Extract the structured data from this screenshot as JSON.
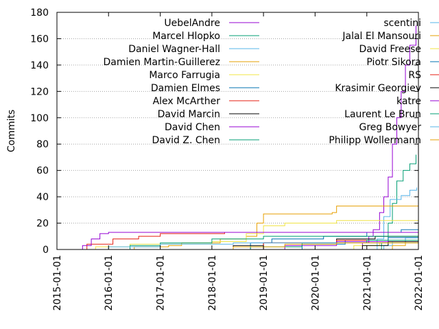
{
  "chart_data": {
    "type": "line",
    "title": "",
    "xlabel": "",
    "ylabel": "Commits",
    "x_axis_type": "date",
    "xlim": [
      "2015-01-01",
      "2022-01-01"
    ],
    "ylim": [
      0,
      180
    ],
    "x_ticks": [
      "2015-01-01",
      "2016-01-01",
      "2017-01-01",
      "2018-01-01",
      "2019-01-01",
      "2020-01-01",
      "2021-01-01",
      "2022-01-01"
    ],
    "y_ticks": [
      0,
      20,
      40,
      60,
      80,
      100,
      120,
      140,
      160,
      180
    ],
    "grid": "horizontal dotted",
    "legend_placement": "top, two columns",
    "line_style": "step",
    "series": [
      {
        "name": "UebelAndre",
        "color": "#9400d3",
        "points": [
          [
            "2020-11-01",
            0
          ],
          [
            "2020-12-01",
            5
          ],
          [
            "2021-01-15",
            10
          ],
          [
            "2021-02-15",
            15
          ],
          [
            "2021-04-01",
            28
          ],
          [
            "2021-05-01",
            40
          ],
          [
            "2021-06-01",
            55
          ],
          [
            "2021-07-01",
            80
          ],
          [
            "2021-08-01",
            100
          ],
          [
            "2021-09-01",
            120
          ],
          [
            "2021-10-01",
            140
          ],
          [
            "2021-11-01",
            155
          ],
          [
            "2021-12-15",
            170
          ]
        ]
      },
      {
        "name": "Marcel Hlopko",
        "color": "#009e73",
        "points": [
          [
            "2021-03-01",
            0
          ],
          [
            "2021-04-15",
            5
          ],
          [
            "2021-06-01",
            20
          ],
          [
            "2021-07-01",
            35
          ],
          [
            "2021-08-01",
            52
          ],
          [
            "2021-09-15",
            60
          ],
          [
            "2021-11-01",
            65
          ],
          [
            "2021-12-15",
            72
          ]
        ]
      },
      {
        "name": "Daniel Wagner-Hall",
        "color": "#56b4e9",
        "points": [
          [
            "2021-01-01",
            0
          ],
          [
            "2021-03-15",
            8
          ],
          [
            "2021-05-01",
            25
          ],
          [
            "2021-06-15",
            38
          ],
          [
            "2021-09-01",
            41
          ],
          [
            "2021-11-01",
            45
          ],
          [
            "2021-12-20",
            47
          ]
        ]
      },
      {
        "name": "Damien Martin-Guillerez",
        "color": "#e69f00",
        "points": [
          [
            "2016-05-01",
            0
          ],
          [
            "2016-07-01",
            2
          ],
          [
            "2017-03-01",
            3
          ],
          [
            "2017-06-01",
            5
          ],
          [
            "2018-03-01",
            8
          ],
          [
            "2018-09-01",
            10
          ],
          [
            "2018-11-15",
            20
          ],
          [
            "2019-01-01",
            27
          ],
          [
            "2020-05-01",
            28
          ],
          [
            "2020-06-01",
            33
          ],
          [
            "2022-01-01",
            33
          ]
        ]
      },
      {
        "name": "Marco Farrugia",
        "color": "#f0e442",
        "points": [
          [
            "2015-07-01",
            0
          ],
          [
            "2015-10-01",
            2
          ],
          [
            "2016-06-01",
            4
          ],
          [
            "2018-01-01",
            6
          ],
          [
            "2018-09-01",
            12
          ],
          [
            "2019-01-01",
            18
          ],
          [
            "2019-06-01",
            20
          ],
          [
            "2020-06-01",
            22
          ],
          [
            "2022-01-01",
            23
          ]
        ]
      },
      {
        "name": "Damien Elmes",
        "color": "#0072b2",
        "points": [
          [
            "2018-06-01",
            0
          ],
          [
            "2018-10-01",
            5
          ],
          [
            "2019-03-01",
            8
          ],
          [
            "2020-03-01",
            10
          ],
          [
            "2021-01-01",
            13
          ],
          [
            "2021-09-01",
            15
          ],
          [
            "2022-01-01",
            17
          ]
        ]
      },
      {
        "name": "Alex McArther",
        "color": "#e51e10",
        "points": [
          [
            "2015-03-01",
            0
          ],
          [
            "2015-08-01",
            4
          ],
          [
            "2016-02-01",
            8
          ],
          [
            "2016-08-01",
            10
          ],
          [
            "2017-01-01",
            12
          ],
          [
            "2018-04-01",
            13
          ],
          [
            "2022-01-01",
            14
          ]
        ]
      },
      {
        "name": "David Marcin",
        "color": "#000000",
        "points": [
          [
            "2018-01-01",
            0
          ],
          [
            "2018-06-01",
            3
          ],
          [
            "2019-01-01",
            5
          ],
          [
            "2020-06-01",
            8
          ],
          [
            "2021-03-01",
            10
          ],
          [
            "2022-01-01",
            11
          ]
        ]
      },
      {
        "name": "David Chen",
        "color": "#9400d3",
        "points": [
          [
            "2015-05-01",
            0
          ],
          [
            "2015-07-01",
            3
          ],
          [
            "2015-09-01",
            8
          ],
          [
            "2015-11-01",
            12
          ],
          [
            "2016-01-01",
            13
          ],
          [
            "2018-06-01",
            13
          ],
          [
            "2022-01-01",
            13
          ]
        ]
      },
      {
        "name": "David Z. Chen",
        "color": "#009e73",
        "points": [
          [
            "2016-02-01",
            0
          ],
          [
            "2016-06-01",
            3
          ],
          [
            "2017-01-01",
            5
          ],
          [
            "2018-01-01",
            8
          ],
          [
            "2019-01-01",
            10
          ],
          [
            "2022-01-01",
            10
          ]
        ]
      },
      {
        "name": "scentini",
        "color": "#56b4e9",
        "points": [
          [
            "2021-03-01",
            0
          ],
          [
            "2021-05-01",
            3
          ],
          [
            "2021-07-01",
            6
          ],
          [
            "2021-10-01",
            9
          ],
          [
            "2022-01-01",
            12
          ]
        ]
      },
      {
        "name": "Jalal El Mansouri",
        "color": "#e69f00",
        "points": [
          [
            "2021-04-01",
            0
          ],
          [
            "2021-07-01",
            3
          ],
          [
            "2021-10-01",
            6
          ],
          [
            "2022-01-01",
            8
          ]
        ]
      },
      {
        "name": "David Freese",
        "color": "#f0e442",
        "points": [
          [
            "2020-06-01",
            0
          ],
          [
            "2020-10-01",
            3
          ],
          [
            "2021-04-01",
            5
          ],
          [
            "2022-01-01",
            6
          ]
        ]
      },
      {
        "name": "Piotr Sikora",
        "color": "#0072b2",
        "points": [
          [
            "2019-04-01",
            0
          ],
          [
            "2019-10-01",
            4
          ],
          [
            "2020-08-01",
            7
          ],
          [
            "2021-06-01",
            9
          ],
          [
            "2022-01-01",
            10
          ]
        ]
      },
      {
        "name": "RS",
        "color": "#e51e10",
        "points": [
          [
            "2018-06-01",
            0
          ],
          [
            "2019-01-01",
            5
          ],
          [
            "2020-06-01",
            7
          ],
          [
            "2022-01-01",
            8
          ]
        ]
      },
      {
        "name": "Krasimir Georgiev",
        "color": "#000000",
        "points": [
          [
            "2020-06-01",
            0
          ],
          [
            "2020-12-01",
            3
          ],
          [
            "2021-06-01",
            6
          ],
          [
            "2022-01-01",
            9
          ]
        ]
      },
      {
        "name": "katre",
        "color": "#9400d3",
        "points": [
          [
            "2018-06-01",
            0
          ],
          [
            "2019-06-01",
            3
          ],
          [
            "2020-06-01",
            6
          ],
          [
            "2021-06-01",
            7
          ],
          [
            "2022-01-01",
            8
          ]
        ]
      },
      {
        "name": "Laurent Le Brun",
        "color": "#009e73",
        "points": [
          [
            "2018-01-01",
            0
          ],
          [
            "2018-10-01",
            2
          ],
          [
            "2019-10-01",
            5
          ],
          [
            "2021-01-01",
            7
          ],
          [
            "2022-01-01",
            8
          ]
        ]
      },
      {
        "name": "Greg Bowyer",
        "color": "#56b4e9",
        "points": [
          [
            "2015-06-01",
            0
          ],
          [
            "2016-01-01",
            2
          ],
          [
            "2017-01-01",
            4
          ],
          [
            "2018-06-01",
            5
          ],
          [
            "2022-01-01",
            5
          ]
        ]
      },
      {
        "name": "Philipp Wollermann",
        "color": "#e69f00",
        "points": [
          [
            "2017-06-01",
            0
          ],
          [
            "2018-06-01",
            2
          ],
          [
            "2019-06-01",
            4
          ],
          [
            "2020-06-01",
            5
          ],
          [
            "2022-01-01",
            6
          ]
        ]
      }
    ]
  }
}
